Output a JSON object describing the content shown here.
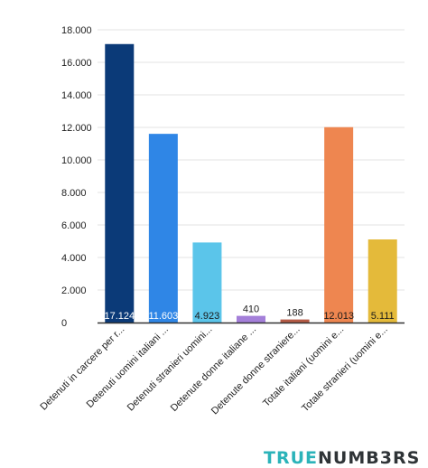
{
  "chart_data": {
    "type": "bar",
    "title": "",
    "xlabel": "",
    "ylabel": "",
    "ylim": [
      0,
      18000
    ],
    "yticks": [
      "0",
      "2.000",
      "4.000",
      "6.000",
      "8.000",
      "10.000",
      "12.000",
      "14.000",
      "16.000",
      "18.000"
    ],
    "grid": true,
    "categories": [
      "Detenuti in carcere per r...",
      "Detenuti uomini italiani ...",
      "Detenuti stranieri uomini...",
      "Detenute donne italiane ...",
      "Detenute donne straniere...",
      "Totale italiani (uomini e...",
      "Totale stranieri (uomini e..."
    ],
    "values": [
      17124,
      11603,
      4923,
      410,
      188,
      12013,
      5111
    ],
    "value_labels": [
      "17.124",
      "11.603",
      "4.923",
      "410",
      "188",
      "12.013",
      "5.111"
    ],
    "colors": [
      "#0b3a78",
      "#2f86e6",
      "#5bc5ea",
      "#a47fd9",
      "#b45a45",
      "#ee8650",
      "#e4ba3a"
    ],
    "label_colors": [
      "#ffffff",
      "#ffffff",
      "#1a1a1a",
      "#1a1a1a",
      "#1a1a1a",
      "#1a1a1a",
      "#1a1a1a"
    ]
  },
  "brand": {
    "part1": "TRUE",
    "part2": "NUMB3RS"
  }
}
